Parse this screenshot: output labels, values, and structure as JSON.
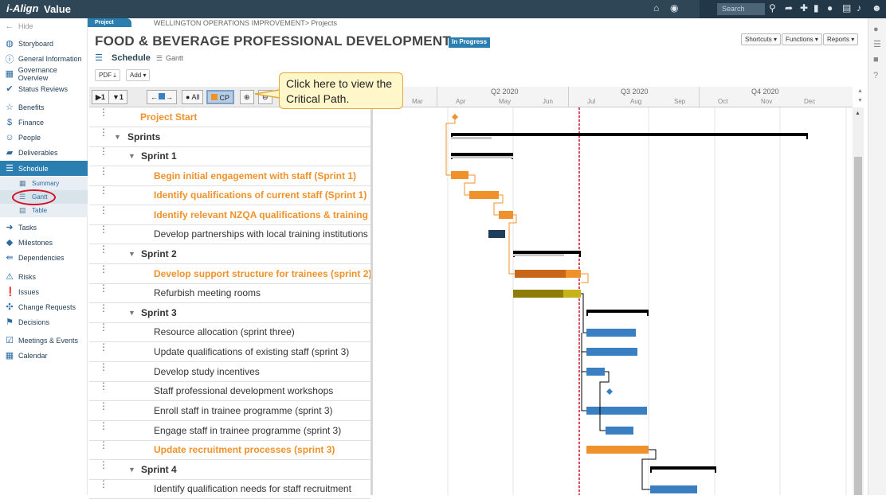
{
  "app": {
    "logo": "i-Align",
    "name": "Value",
    "search_placeholder": "Search"
  },
  "sidebar": {
    "hide": "Hide",
    "items": [
      {
        "label": "Storyboard",
        "icon": "book-icon"
      },
      {
        "label": "General Information",
        "icon": "info-icon"
      },
      {
        "label": "Governance Overview",
        "icon": "governance-icon"
      },
      {
        "label": "Status Reviews",
        "icon": "check-icon"
      },
      {
        "label": "Benefits",
        "icon": "star-icon"
      },
      {
        "label": "Finance",
        "icon": "dollar-icon"
      },
      {
        "label": "People",
        "icon": "people-icon"
      },
      {
        "label": "Deliverables",
        "icon": "truck-icon"
      },
      {
        "label": "Schedule",
        "icon": "schedule-icon"
      },
      {
        "label": "Tasks",
        "icon": "arrow-right-icon"
      },
      {
        "label": "Milestones",
        "icon": "diamond-icon"
      },
      {
        "label": "Dependencies",
        "icon": "dependency-icon"
      },
      {
        "label": "Risks",
        "icon": "warning-icon"
      },
      {
        "label": "Issues",
        "icon": "alert-icon"
      },
      {
        "label": "Change Requests",
        "icon": "change-icon"
      },
      {
        "label": "Decisions",
        "icon": "signpost-icon"
      },
      {
        "label": "Meetings & Events",
        "icon": "meeting-icon"
      },
      {
        "label": "Calendar",
        "icon": "calendar-icon"
      }
    ],
    "schedule_sub": [
      "Summary",
      "Gantt",
      "Table"
    ]
  },
  "header": {
    "tag": "Project",
    "breadcrumb": "WELLINGTON OPERATIONS IMPROVEMENT> Projects",
    "title": "FOOD & BEVERAGE PROFESSIONAL DEVELOPMENT",
    "status": "In Progress",
    "buttons": [
      "Shortcuts ▾",
      "Functions ▾",
      "Reports ▾"
    ],
    "section": "Schedule",
    "view": "Gantt",
    "pdf": "PDF",
    "add": "Add ▾"
  },
  "toolbar": {
    "all": "All",
    "cp": "CP"
  },
  "callout": "Click here to view the Critical Path.",
  "timeline": {
    "quarters": [
      "Q2 2020",
      "Q3 2020",
      "Q4 2020"
    ],
    "months": [
      "Mar",
      "Apr",
      "May",
      "Jun",
      "Jul",
      "Aug",
      "Sep",
      "Oct",
      "Nov",
      "Dec"
    ]
  },
  "tasks": [
    {
      "name": "Project Start",
      "level": 0,
      "critical": true,
      "group": false
    },
    {
      "name": "Sprints",
      "level": 0,
      "critical": false,
      "group": true
    },
    {
      "name": "Sprint 1",
      "level": 1,
      "critical": false,
      "group": true
    },
    {
      "name": "Begin initial engagement with staff (Sprint 1)",
      "level": 2,
      "critical": true,
      "group": false
    },
    {
      "name": "Identify qualifications of current staff (Sprint 1)",
      "level": 2,
      "critical": true,
      "group": false
    },
    {
      "name": "Identify relevant NZQA qualifications & training",
      "level": 2,
      "critical": true,
      "group": false
    },
    {
      "name": "Develop partnerships with local training institutions",
      "level": 2,
      "critical": false,
      "group": false
    },
    {
      "name": "Sprint 2",
      "level": 1,
      "critical": false,
      "group": true
    },
    {
      "name": "Develop support structure for trainees (sprint 2)",
      "level": 2,
      "critical": true,
      "group": false
    },
    {
      "name": "Refurbish meeting rooms",
      "level": 2,
      "critical": false,
      "group": false
    },
    {
      "name": "Sprint 3",
      "level": 1,
      "critical": false,
      "group": true
    },
    {
      "name": "Resource allocation (sprint three)",
      "level": 2,
      "critical": false,
      "group": false
    },
    {
      "name": "Update qualifications of existing staff (sprint 3)",
      "level": 2,
      "critical": false,
      "group": false
    },
    {
      "name": "Develop study incentives",
      "level": 2,
      "critical": false,
      "group": false
    },
    {
      "name": "Staff professional development workshops",
      "level": 2,
      "critical": false,
      "group": false
    },
    {
      "name": "Enroll staff in trainee programme (sprint 3)",
      "level": 2,
      "critical": false,
      "group": false
    },
    {
      "name": "Engage staff in trainee programme (sprint 3)",
      "level": 2,
      "critical": false,
      "group": false
    },
    {
      "name": "Update recruitment processes (sprint 3)",
      "level": 2,
      "critical": true,
      "group": false
    },
    {
      "name": "Sprint 4",
      "level": 1,
      "critical": false,
      "group": true
    },
    {
      "name": "Identify qualification needs for staff recruitment",
      "level": 2,
      "critical": false,
      "group": false
    }
  ],
  "colors": {
    "critical": "#f0922b",
    "normal": "#3a7fc1",
    "summary": "#000000",
    "today": "#d6112a",
    "accent": "#2b7fb0"
  }
}
